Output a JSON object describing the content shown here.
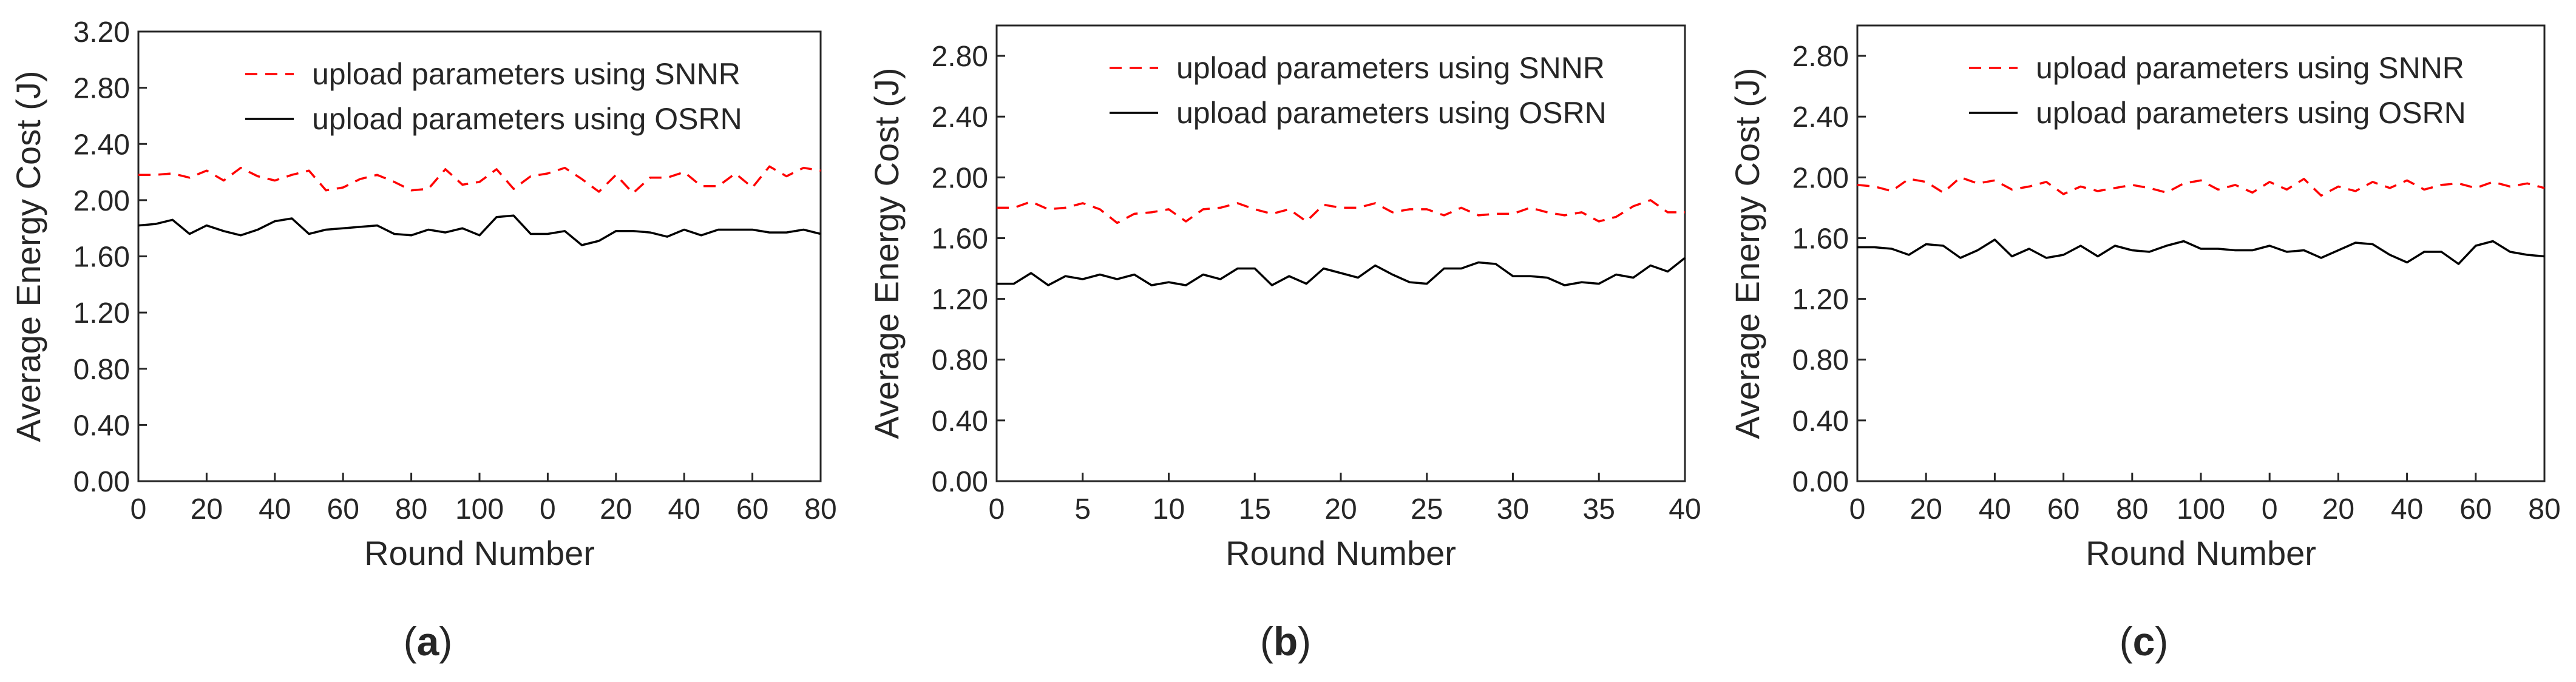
{
  "figure": {
    "captions": [
      "a",
      "b",
      "c"
    ]
  },
  "colors": {
    "snnr": "#ff0000",
    "osrn": "#000000",
    "axis": "#262626"
  },
  "chart_data": [
    {
      "type": "line",
      "panel": "a",
      "title": "",
      "xlabel": "Round Number",
      "ylabel": "Average Energy Cost (J)",
      "ylim": [
        0,
        3.2
      ],
      "xlim": [
        0,
        40
      ],
      "xticks": [
        0,
        4,
        8,
        12,
        16,
        20,
        24,
        28,
        32,
        36,
        40
      ],
      "xtick_labels": [
        "0",
        "20",
        "40",
        "60",
        "80",
        "100",
        "0",
        "20",
        "40",
        "60",
        "80"
      ],
      "yticks": [
        0,
        0.4,
        0.8,
        1.2,
        1.6,
        2.0,
        2.4,
        2.8,
        3.2
      ],
      "ytick_labels": [
        "0.00",
        "0.40",
        "0.80",
        "1.20",
        "1.60",
        "2.00",
        "2.40",
        "2.80",
        "3.20"
      ],
      "legend_position": "top-right",
      "grid": false,
      "x": [
        0,
        1,
        2,
        3,
        4,
        5,
        6,
        7,
        8,
        9,
        10,
        11,
        12,
        13,
        14,
        15,
        16,
        17,
        18,
        19,
        20,
        21,
        22,
        23,
        24,
        25,
        26,
        27,
        28,
        29,
        30,
        31,
        32,
        33,
        34,
        35,
        36,
        37,
        38,
        39,
        40
      ],
      "series": [
        {
          "name": "upload parameters using SNNR",
          "style": "dashed",
          "color": "#ff0000",
          "values": [
            2.18,
            2.18,
            2.19,
            2.16,
            2.21,
            2.14,
            2.23,
            2.17,
            2.14,
            2.18,
            2.21,
            2.07,
            2.09,
            2.15,
            2.18,
            2.13,
            2.07,
            2.08,
            2.22,
            2.11,
            2.13,
            2.22,
            2.08,
            2.17,
            2.19,
            2.23,
            2.15,
            2.06,
            2.18,
            2.05,
            2.16,
            2.16,
            2.2,
            2.1,
            2.1,
            2.19,
            2.09,
            2.24,
            2.17,
            2.23,
            2.21
          ]
        },
        {
          "name": "upload parameters using OSRN",
          "style": "solid",
          "color": "#000000",
          "values": [
            1.82,
            1.83,
            1.86,
            1.76,
            1.82,
            1.78,
            1.75,
            1.79,
            1.85,
            1.87,
            1.76,
            1.79,
            1.8,
            1.81,
            1.82,
            1.76,
            1.75,
            1.79,
            1.77,
            1.8,
            1.75,
            1.88,
            1.89,
            1.76,
            1.76,
            1.78,
            1.68,
            1.71,
            1.78,
            1.78,
            1.77,
            1.74,
            1.79,
            1.75,
            1.79,
            1.79,
            1.79,
            1.77,
            1.77,
            1.79,
            1.76
          ]
        }
      ]
    },
    {
      "type": "line",
      "panel": "b",
      "title": "",
      "xlabel": "Round Number",
      "ylabel": "Average Energy Cost (J)",
      "ylim": [
        0,
        3.0
      ],
      "xlim": [
        0,
        40
      ],
      "xticks": [
        0,
        5,
        10,
        15,
        20,
        25,
        30,
        35,
        40
      ],
      "xtick_labels": [
        "0",
        "5",
        "10",
        "15",
        "20",
        "25",
        "30",
        "35",
        "40"
      ],
      "yticks": [
        0,
        0.4,
        0.8,
        1.2,
        1.6,
        2.0,
        2.4,
        2.8
      ],
      "ytick_labels": [
        "0.00",
        "0.40",
        "0.80",
        "1.20",
        "1.60",
        "2.00",
        "2.40",
        "2.80"
      ],
      "legend_position": "top-right",
      "grid": false,
      "x": [
        0,
        1,
        2,
        3,
        4,
        5,
        6,
        7,
        8,
        9,
        10,
        11,
        12,
        13,
        14,
        15,
        16,
        17,
        18,
        19,
        20,
        21,
        22,
        23,
        24,
        25,
        26,
        27,
        28,
        29,
        30,
        31,
        32,
        33,
        34,
        35,
        36,
        37,
        38,
        39,
        40
      ],
      "series": [
        {
          "name": "upload parameters using SNNR",
          "style": "dashed",
          "color": "#ff0000",
          "values": [
            1.8,
            1.8,
            1.84,
            1.79,
            1.8,
            1.83,
            1.79,
            1.7,
            1.76,
            1.77,
            1.79,
            1.71,
            1.79,
            1.8,
            1.83,
            1.79,
            1.76,
            1.79,
            1.71,
            1.82,
            1.8,
            1.8,
            1.83,
            1.77,
            1.79,
            1.79,
            1.75,
            1.8,
            1.75,
            1.76,
            1.76,
            1.8,
            1.77,
            1.75,
            1.77,
            1.71,
            1.74,
            1.81,
            1.85,
            1.77,
            1.77
          ]
        },
        {
          "name": "upload parameters using OSRN",
          "style": "solid",
          "color": "#000000",
          "values": [
            1.3,
            1.3,
            1.37,
            1.29,
            1.35,
            1.33,
            1.36,
            1.33,
            1.36,
            1.29,
            1.31,
            1.29,
            1.36,
            1.33,
            1.4,
            1.4,
            1.29,
            1.35,
            1.3,
            1.4,
            1.37,
            1.34,
            1.42,
            1.36,
            1.31,
            1.3,
            1.4,
            1.4,
            1.44,
            1.43,
            1.35,
            1.35,
            1.34,
            1.29,
            1.31,
            1.3,
            1.36,
            1.34,
            1.42,
            1.38,
            1.47
          ]
        }
      ]
    },
    {
      "type": "line",
      "panel": "c",
      "title": "",
      "xlabel": "Round Number",
      "ylabel": "Average Energy Cost (J)",
      "ylim": [
        0,
        3.0
      ],
      "xlim": [
        0,
        40
      ],
      "xticks": [
        0,
        4,
        8,
        12,
        16,
        20,
        24,
        28,
        32,
        36,
        40
      ],
      "xtick_labels": [
        "0",
        "20",
        "40",
        "60",
        "80",
        "100",
        "0",
        "20",
        "40",
        "60",
        "80"
      ],
      "yticks": [
        0,
        0.4,
        0.8,
        1.2,
        1.6,
        2.0,
        2.4,
        2.8
      ],
      "ytick_labels": [
        "0.00",
        "0.40",
        "0.80",
        "1.20",
        "1.60",
        "2.00",
        "2.40",
        "2.80"
      ],
      "legend_position": "top-right",
      "grid": false,
      "x": [
        0,
        1,
        2,
        3,
        4,
        5,
        6,
        7,
        8,
        9,
        10,
        11,
        12,
        13,
        14,
        15,
        16,
        17,
        18,
        19,
        20,
        21,
        22,
        23,
        24,
        25,
        26,
        27,
        28,
        29,
        30,
        31,
        32,
        33,
        34,
        35,
        36,
        37,
        38,
        39,
        40
      ],
      "series": [
        {
          "name": "upload parameters using SNNR",
          "style": "dashed",
          "color": "#ff0000",
          "values": [
            1.95,
            1.94,
            1.91,
            1.99,
            1.97,
            1.9,
            2.0,
            1.96,
            1.98,
            1.92,
            1.94,
            1.97,
            1.89,
            1.94,
            1.91,
            1.93,
            1.95,
            1.93,
            1.9,
            1.96,
            1.98,
            1.92,
            1.95,
            1.9,
            1.97,
            1.92,
            1.99,
            1.88,
            1.94,
            1.91,
            1.97,
            1.93,
            1.98,
            1.92,
            1.95,
            1.96,
            1.93,
            1.97,
            1.94,
            1.96,
            1.93
          ]
        },
        {
          "name": "upload parameters using OSRN",
          "style": "solid",
          "color": "#000000",
          "values": [
            1.54,
            1.54,
            1.53,
            1.49,
            1.56,
            1.55,
            1.47,
            1.52,
            1.59,
            1.48,
            1.53,
            1.47,
            1.49,
            1.55,
            1.48,
            1.55,
            1.52,
            1.51,
            1.55,
            1.58,
            1.53,
            1.53,
            1.52,
            1.52,
            1.55,
            1.51,
            1.52,
            1.47,
            1.52,
            1.57,
            1.56,
            1.49,
            1.44,
            1.51,
            1.51,
            1.43,
            1.55,
            1.58,
            1.51,
            1.49,
            1.48
          ]
        }
      ]
    }
  ]
}
